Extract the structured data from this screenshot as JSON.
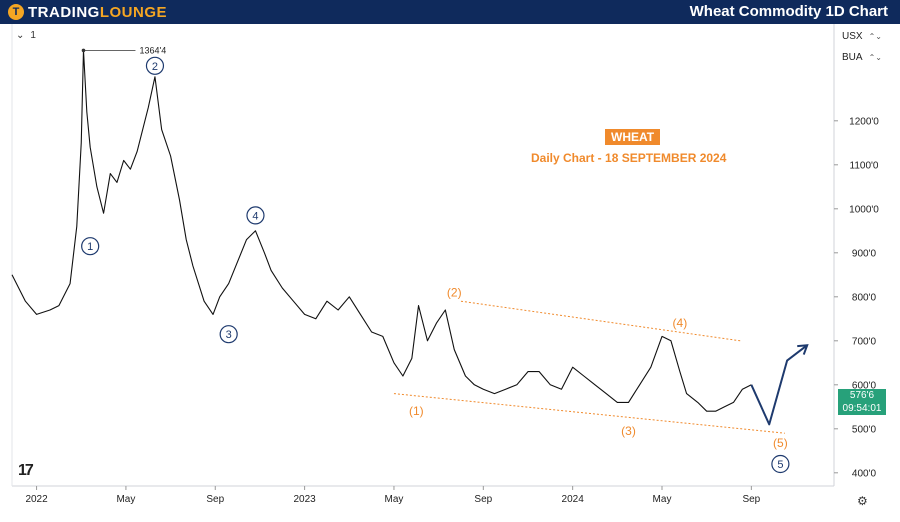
{
  "header": {
    "logo_text_1": "TRADING",
    "logo_text_2": "LOUNGE",
    "logo_mark": "T",
    "title": "Wheat Commodity 1D Chart"
  },
  "toolbar": {
    "interval_icon": "chevron-down-icon",
    "interval_value": "1",
    "currency": "USX",
    "unit": "BUA",
    "chevron": "⌃⌄"
  },
  "last_price": {
    "value": "576'6",
    "countdown": "09:54:01",
    "color": "#27a17a"
  },
  "footer": {
    "tv_logo": "17",
    "gear_icon": "⚙"
  },
  "chart_data": {
    "type": "line",
    "title": "WHEAT",
    "subtitle": "Daily Chart - 18 SEPTEMBER 2024",
    "high_marker": "1364'4",
    "y_ticks": [
      400,
      500,
      600,
      700,
      800,
      900,
      1000,
      1100,
      1200
    ],
    "y_tick_labels": [
      "400'0",
      "500'0",
      "600'0",
      "700'0",
      "800'0",
      "900'0",
      "1000'0",
      "1100'0",
      "1200'0"
    ],
    "ylim": [
      370,
      1420
    ],
    "x_ticks": [
      0,
      4,
      8,
      12,
      16,
      20,
      24,
      28,
      32
    ],
    "x_tick_labels": [
      "2022",
      "May",
      "Sep",
      "2023",
      "May",
      "Sep",
      "2024",
      "May",
      "Sep"
    ],
    "xlim": [
      -1.1,
      35.7
    ],
    "series": [
      {
        "name": "Wheat price (approx.)",
        "color": "#111111",
        "x": [
          -1.1,
          -0.5,
          0,
          0.6,
          1,
          1.5,
          1.8,
          2,
          2.1,
          2.25,
          2.4,
          2.7,
          3,
          3.3,
          3.6,
          3.9,
          4.2,
          4.5,
          5,
          5.3,
          5.6,
          6,
          6.4,
          6.7,
          7,
          7.5,
          7.9,
          8.2,
          8.6,
          9,
          9.4,
          9.8,
          10.2,
          10.5,
          11,
          11.5,
          12,
          12.5,
          13,
          13.5,
          14,
          14.5,
          15,
          15.5,
          16,
          16.4,
          16.8,
          17.1,
          17.5,
          17.9,
          18.3,
          18.7,
          19.2,
          19.6,
          20,
          20.5,
          21,
          21.5,
          22,
          22.5,
          23,
          23.5,
          24,
          24.5,
          25,
          25.5,
          26,
          26.5,
          27,
          27.5,
          28,
          28.4,
          28.8,
          29.1,
          29.6,
          30,
          30.4,
          30.8,
          31.2,
          31.6,
          32
        ],
        "y": [
          850,
          790,
          760,
          770,
          780,
          830,
          960,
          1150,
          1360,
          1220,
          1140,
          1050,
          990,
          1080,
          1060,
          1110,
          1090,
          1130,
          1230,
          1300,
          1180,
          1120,
          1020,
          930,
          870,
          790,
          760,
          800,
          830,
          880,
          930,
          950,
          900,
          860,
          820,
          790,
          760,
          750,
          790,
          770,
          800,
          760,
          720,
          710,
          650,
          620,
          660,
          780,
          700,
          740,
          770,
          680,
          620,
          600,
          590,
          580,
          590,
          600,
          630,
          630,
          600,
          590,
          640,
          620,
          600,
          580,
          560,
          560,
          600,
          640,
          710,
          700,
          630,
          580,
          560,
          540,
          540,
          550,
          560,
          590,
          600
        ]
      },
      {
        "name": "Projected path",
        "color": "#1e3a6e",
        "x": [
          32,
          32.8,
          33.6,
          34.5
        ],
        "y": [
          600,
          510,
          655,
          690
        ]
      },
      {
        "name": "Upper channel",
        "color": "#f08a2c",
        "x": [
          19,
          31.5
        ],
        "y": [
          790,
          700
        ]
      },
      {
        "name": "Lower channel",
        "color": "#f08a2c",
        "x": [
          16,
          33.5
        ],
        "y": [
          580,
          490
        ]
      }
    ],
    "annotations": [
      {
        "label": "1",
        "x": 2.4,
        "y": 915,
        "style": "circle-dark"
      },
      {
        "label": "2",
        "x": 5.3,
        "y": 1325,
        "style": "circle-dark"
      },
      {
        "label": "3",
        "x": 8.6,
        "y": 715,
        "style": "circle-dark"
      },
      {
        "label": "4",
        "x": 9.8,
        "y": 985,
        "style": "circle-dark"
      },
      {
        "label": "5",
        "x": 33.3,
        "y": 420,
        "style": "circle-dark"
      },
      {
        "label": "(1)",
        "x": 17.0,
        "y": 540,
        "style": "orange"
      },
      {
        "label": "(2)",
        "x": 18.7,
        "y": 810,
        "style": "orange"
      },
      {
        "label": "(3)",
        "x": 26.5,
        "y": 495,
        "style": "orange"
      },
      {
        "label": "(4)",
        "x": 28.8,
        "y": 740,
        "style": "orange"
      },
      {
        "label": "(5)",
        "x": 33.3,
        "y": 468,
        "style": "orange"
      }
    ]
  }
}
